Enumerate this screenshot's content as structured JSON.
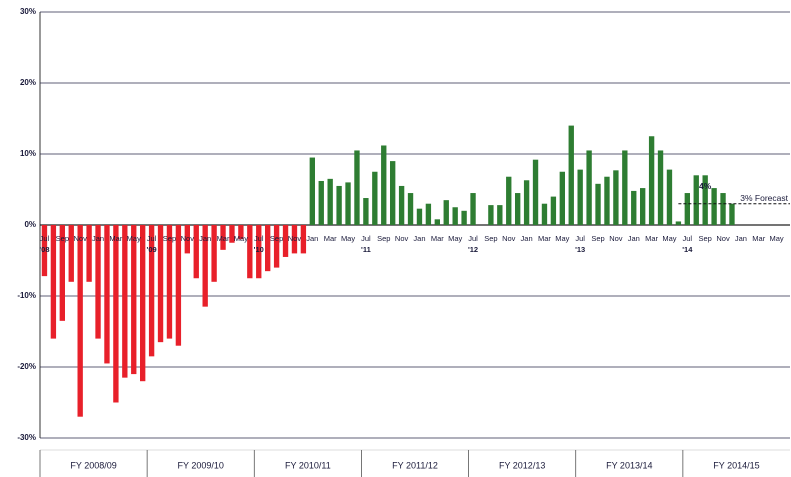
{
  "chart_data": {
    "type": "bar",
    "categories": [
      "Jul",
      null,
      "Sep",
      null,
      "Nov",
      null,
      "Jan",
      null,
      "Mar",
      null,
      "May",
      null,
      "Jul",
      null,
      "Sep",
      null,
      "Nov",
      null,
      "Jan",
      null,
      "Mar",
      null,
      "May",
      null,
      "Jul",
      null,
      "Sep",
      null,
      "Nov",
      null,
      "Jan",
      null,
      "Mar",
      null,
      "May",
      null,
      "Jul",
      null,
      "Sep",
      null,
      "Nov",
      null,
      "Jan",
      null,
      "Mar",
      null,
      "May",
      null,
      "Jul",
      null,
      "Sep",
      null,
      "Nov",
      null,
      "Jan",
      null,
      "Mar",
      null,
      "May",
      null,
      "Jul",
      null,
      "Sep",
      null,
      "Nov",
      null,
      "Jan",
      null,
      "Mar",
      null,
      "May",
      null,
      "Jul",
      null,
      "Sep",
      null,
      "Nov",
      null,
      "Jan",
      null,
      "Mar",
      null,
      "May",
      null
    ],
    "years": [
      "'08",
      "'09",
      "'10",
      "'11",
      "'12",
      "'13",
      "'14"
    ],
    "fiscal_years": [
      "FY 2008/09",
      "FY 2009/10",
      "FY 2010/11",
      "FY 2011/12",
      "FY 2012/13",
      "FY 2013/14",
      "FY 2014/15"
    ],
    "values": [
      -7.2,
      -16,
      -13.5,
      -8,
      -27,
      -8,
      -16,
      -19.5,
      -25,
      -21.5,
      -21,
      -22,
      -18.5,
      -16.5,
      -16,
      -17,
      -4,
      -7.5,
      -11.5,
      -8,
      -3.5,
      -2.5,
      -2,
      -7.5,
      -7.5,
      -6.5,
      -6,
      -4.5,
      -4,
      -4,
      9.5,
      6.2,
      6.5,
      5.5,
      6,
      10.5,
      3.8,
      7.5,
      11.2,
      9,
      5.5,
      4.5,
      2.3,
      3,
      0.8,
      3.5,
      2.5,
      2,
      4.5,
      null,
      2.8,
      2.8,
      6.8,
      4.5,
      6.3,
      9.2,
      3,
      4,
      7.5,
      14,
      7.8,
      10.5,
      5.8,
      6.8,
      7.7,
      10.5,
      4.8,
      5.2,
      12.5,
      10.5,
      7.8,
      0.5,
      4.5,
      7,
      7,
      5.2,
      4.5,
      3,
      null,
      null,
      null,
      null,
      null,
      null
    ],
    "positive_color": "#2e7d32",
    "negative_color": "#e8202a",
    "ylim": [
      -30,
      30
    ],
    "yticks": [
      {
        "value": -30,
        "label": "-30%"
      },
      {
        "value": -20,
        "label": "-20%"
      },
      {
        "value": -10,
        "label": "-10%"
      },
      {
        "value": 0,
        "label": "0%"
      },
      {
        "value": 10,
        "label": "10%"
      },
      {
        "value": 20,
        "label": "20%"
      },
      {
        "value": 30,
        "label": "30%"
      }
    ],
    "grid": true,
    "annotation": "4%",
    "forecast": {
      "label": "3% Forecast",
      "value": 3
    }
  }
}
